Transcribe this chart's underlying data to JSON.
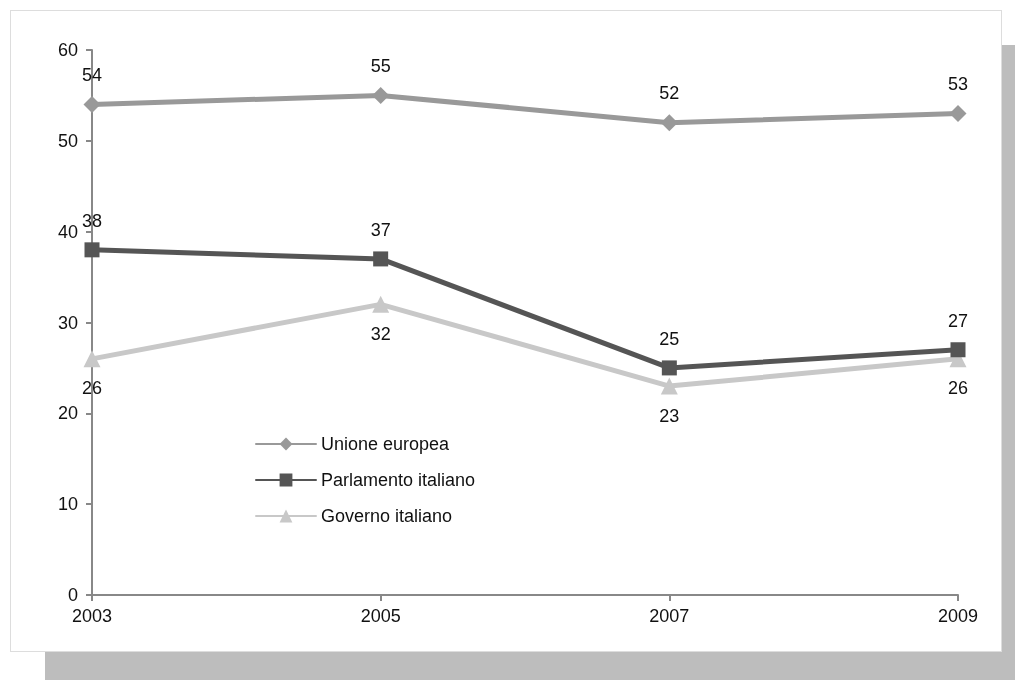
{
  "chart_data": {
    "type": "line",
    "categories": [
      "2003",
      "2005",
      "2007",
      "2009"
    ],
    "series": [
      {
        "name": "Unione europea",
        "color": "#999999",
        "marker": "diamond",
        "values": [
          54,
          55,
          52,
          53
        ]
      },
      {
        "name": "Parlamento italiano",
        "color": "#555555",
        "marker": "square",
        "values": [
          38,
          37,
          25,
          27
        ]
      },
      {
        "name": "Governo italiano",
        "color": "#c8c8c8",
        "marker": "triangle",
        "values": [
          26,
          32,
          23,
          26
        ]
      }
    ],
    "ylim": [
      0,
      60
    ],
    "yticks": [
      0,
      10,
      20,
      30,
      40,
      50,
      60
    ],
    "grid": false,
    "legend": "bottom left",
    "data_labels": true,
    "line_style": "solid"
  }
}
